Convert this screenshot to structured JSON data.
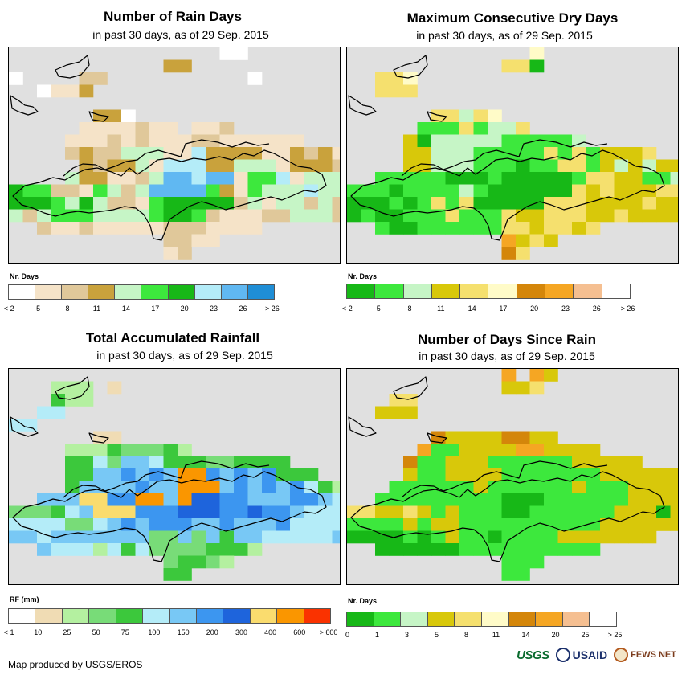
{
  "panels": [
    {
      "title": "Number of Rain Days",
      "subtitle": "in past 30 days, as of 29 Sep. 2015",
      "legend_unit": "Nr. Days",
      "legend_labels": [
        "< 2",
        "5",
        "8",
        "11",
        "14",
        "17",
        "20",
        "23",
        "26",
        "> 26"
      ],
      "legend_colors": [
        "#ffffff",
        "#f5e3c8",
        "#e0c89a",
        "#c9a23c",
        "#c6f5c6",
        "#3de83d",
        "#17b817",
        "#b4ecf8",
        "#60b8f2",
        "#1f8ed6"
      ],
      "palette": {
        "o": "#c9a23c",
        "t": "#e0c89a",
        "p": "#f5e3c8",
        "g": "#3de83d",
        "d": "#17b817",
        "l": "#c6f5c6",
        "c": "#b4ecf8",
        "b": "#60b8f2",
        "w": "#ffffff"
      }
    },
    {
      "title": "Maximum Consecutive Dry Days",
      "subtitle": "in past 30 days, as of 29 Sep. 2015",
      "legend_unit": "Nr. Days",
      "legend_labels": [
        "< 2",
        "5",
        "8",
        "11",
        "14",
        "17",
        "20",
        "23",
        "26",
        "> 26"
      ],
      "legend_colors": [
        "#17b817",
        "#3de83d",
        "#c6f5c6",
        "#d8c80a",
        "#f5e06e",
        "#fffbc8",
        "#d4860a",
        "#f5a623",
        "#f5bf91",
        "#ffffff"
      ],
      "palette": {
        "d": "#17b817",
        "g": "#3de83d",
        "l": "#c6f5c6",
        "y": "#d8c80a",
        "f": "#f5e06e",
        "c": "#fffbc8",
        "o": "#d4860a",
        "a": "#f5a623"
      }
    },
    {
      "title": "Total Accumulated Rainfall",
      "subtitle": "in past 30 days, as of 29 Sep. 2015",
      "legend_unit": "RF (mm)",
      "legend_labels": [
        "< 1",
        "10",
        "25",
        "50",
        "75",
        "100",
        "150",
        "200",
        "300",
        "400",
        "600",
        "> 600"
      ],
      "legend_colors": [
        "#ffffff",
        "#f0dcb4",
        "#b4f0a0",
        "#78dc78",
        "#3cc83c",
        "#b4ecf8",
        "#78c8f5",
        "#3c96f0",
        "#1e64dc",
        "#fadc6e",
        "#fa9600",
        "#fa3200"
      ],
      "palette": {
        "t": "#f0dcb4",
        "l": "#b4f0a0",
        "m": "#78dc78",
        "g": "#3cc83c",
        "c": "#b4ecf8",
        "s": "#78c8f5",
        "b": "#3c96f0",
        "n": "#1e64dc",
        "y": "#fadc6e",
        "o": "#fa9600"
      }
    },
    {
      "title": "Number of Days Since Rain",
      "subtitle": "in past 30 days, as of 29 Sep. 2015",
      "legend_unit": "Nr. Days",
      "legend_labels": [
        "0",
        "1",
        "3",
        "5",
        "8",
        "11",
        "14",
        "20",
        "25",
        "> 25"
      ],
      "legend_colors": [
        "#17b817",
        "#3de83d",
        "#c6f5c6",
        "#d8c80a",
        "#f5e06e",
        "#fffbc8",
        "#d4860a",
        "#f5a623",
        "#f5bf91",
        "#ffffff"
      ],
      "palette": {
        "d": "#17b817",
        "g": "#3de83d",
        "l": "#c6f5c6",
        "y": "#d8c80a",
        "f": "#f5e06e",
        "o": "#d4860a",
        "a": "#f5a623"
      }
    }
  ],
  "credit": "Map produced by USGS/EROS",
  "logos": {
    "usgs": "USGS",
    "usaid": "USAID",
    "fews": "FEWS NET"
  }
}
